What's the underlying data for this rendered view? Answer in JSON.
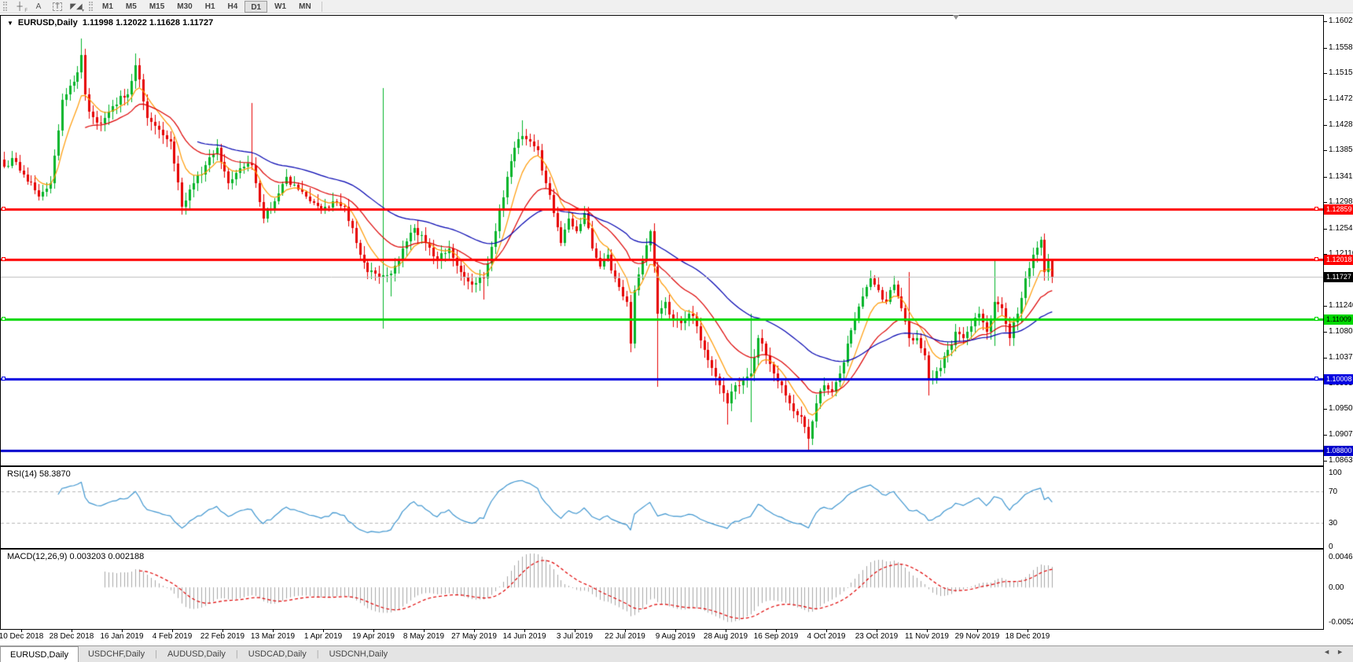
{
  "toolbar": {
    "tools": [
      {
        "name": "crosshair",
        "glyph": "┼",
        "sub": "F"
      },
      {
        "name": "text",
        "glyph": "A",
        "sub": ""
      },
      {
        "name": "text-label",
        "glyph": "T",
        "sub": ""
      },
      {
        "name": "objects",
        "glyph": "◤◢",
        "sub": "▾"
      }
    ],
    "timeframes": [
      "M1",
      "M5",
      "M15",
      "M30",
      "H1",
      "H4",
      "D1",
      "W1",
      "MN"
    ],
    "active_timeframe": "D1"
  },
  "chart": {
    "title_symbol": "EURUSD,Daily",
    "ohlc": {
      "open": "1.11998",
      "high": "1.12022",
      "low": "1.11628",
      "close": "1.11727"
    }
  },
  "rsi": {
    "label": "RSI(14) 58.3870",
    "period": 14,
    "current": 58.387,
    "levels": [
      100,
      70,
      30,
      0
    ],
    "line_color": "#3f96d0"
  },
  "macd": {
    "label": "MACD(12,26,9) 0.003203 0.002188",
    "fast": 12,
    "slow": 26,
    "signal_period": 9,
    "current_main": 0.003203,
    "current_signal": 0.002188,
    "axis_labels": [
      "0.00463",
      "0.00",
      "-0.00529"
    ],
    "axis_values": [
      0.00463,
      0,
      -0.00529
    ]
  },
  "tabs": {
    "items": [
      "EURUSD,Daily",
      "USDCHF,Daily",
      "AUDUSD,Daily",
      "USDCAD,Daily",
      "USDCNH,Daily"
    ],
    "active": "EURUSD,Daily"
  },
  "scrollbar": {
    "left_arrow": "◄",
    "right_arrow": "►"
  },
  "chart_data": {
    "type": "candlestick",
    "symbol": "EURUSD",
    "timeframe": "Daily",
    "bars": 272,
    "price_axis_ticks": [
      "1.16020",
      "1.15580",
      "1.15150",
      "1.14720",
      "1.14280",
      "1.13850",
      "1.13410",
      "1.12980",
      "1.12540",
      "1.12110",
      "1.11670",
      "1.11240",
      "1.10800",
      "1.10370",
      "1.09930",
      "1.09500",
      "1.09070",
      "1.08630"
    ],
    "date_ticks": [
      "10 Dec 2018",
      "28 Dec 2018",
      "16 Jan 2019",
      "4 Feb 2019",
      "22 Feb 2019",
      "13 Mar 2019",
      "1 Apr 2019",
      "19 Apr 2019",
      "8 May 2019",
      "27 May 2019",
      "14 Jun 2019",
      "3 Jul 2019",
      "22 Jul 2019",
      "9 Aug 2019",
      "28 Aug 2019",
      "16 Sep 2019",
      "4 Oct 2019",
      "23 Oct 2019",
      "11 Nov 2019",
      "29 Nov 2019",
      "18 Dec 2019"
    ],
    "y_axis_range": [
      1.0863,
      1.1602
    ],
    "hlines": [
      {
        "price": 1.12859,
        "label": "1.12859",
        "color": "#ff0000",
        "text_color": "#ffffff",
        "width": 3,
        "handles": true
      },
      {
        "price": 1.12018,
        "label": "1.12018",
        "color": "#ff0000",
        "text_color": "#ffffff",
        "width": 3,
        "handles": true
      },
      {
        "price": 1.11009,
        "label": "1.11009",
        "color": "#00d800",
        "text_color": "#000000",
        "width": 3,
        "handles": true
      },
      {
        "price": 1.10008,
        "label": "1.10008",
        "color": "#0000e0",
        "text_color": "#ffffff",
        "width": 3,
        "handles": true
      },
      {
        "price": 1.088,
        "label": "1.08800",
        "color": "#0000cc",
        "text_color": "#ffffff",
        "width": 3,
        "handles": false
      }
    ],
    "bid_line": {
      "price": 1.11727,
      "label": "1.11727",
      "line_color": "#c0c0c0",
      "badge_color": "#000000",
      "text_color": "#ffffff"
    },
    "moving_averages": [
      {
        "name": "fast-ma",
        "period": 8,
        "color": "#ff9900"
      },
      {
        "name": "mid-ma",
        "period": 21,
        "color": "#dd0000"
      },
      {
        "name": "slow-ma",
        "period": 50,
        "color": "#0000b0"
      }
    ],
    "candle_up_color": "#00b428",
    "candle_down_color": "#e60000",
    "macd_hist_color": "#a8a8a8",
    "macd_signal_color": "#e00000",
    "close_anchors": [
      [
        0,
        1.1358
      ],
      [
        2,
        1.1372
      ],
      [
        5,
        1.1345
      ],
      [
        9,
        1.1308
      ],
      [
        12,
        1.133
      ],
      [
        15,
        1.147
      ],
      [
        18,
        1.15
      ],
      [
        20,
        1.1545
      ],
      [
        21,
        1.148
      ],
      [
        22,
        1.145
      ],
      [
        25,
        1.143
      ],
      [
        28,
        1.146
      ],
      [
        32,
        1.148
      ],
      [
        34,
        1.1528
      ],
      [
        37,
        1.144
      ],
      [
        40,
        1.142
      ],
      [
        43,
        1.14
      ],
      [
        46,
        1.129
      ],
      [
        49,
        1.133
      ],
      [
        52,
        1.136
      ],
      [
        55,
        1.139
      ],
      [
        58,
        1.133
      ],
      [
        61,
        1.1355
      ],
      [
        64,
        1.136
      ],
      [
        67,
        1.127
      ],
      [
        70,
        1.13
      ],
      [
        73,
        1.134
      ],
      [
        76,
        1.132
      ],
      [
        79,
        1.13
      ],
      [
        82,
        1.1285
      ],
      [
        85,
        1.13
      ],
      [
        88,
        1.129
      ],
      [
        91,
        1.123
      ],
      [
        94,
        1.118
      ],
      [
        98,
        1.1175
      ],
      [
        100,
        1.1178
      ],
      [
        103,
        1.122
      ],
      [
        106,
        1.1255
      ],
      [
        109,
        1.123
      ],
      [
        112,
        1.12
      ],
      [
        115,
        1.122
      ],
      [
        118,
        1.118
      ],
      [
        121,
        1.116
      ],
      [
        124,
        1.117
      ],
      [
        127,
        1.125
      ],
      [
        130,
        1.134
      ],
      [
        132,
        1.139
      ],
      [
        134,
        1.141
      ],
      [
        136,
        1.14
      ],
      [
        138,
        1.1385
      ],
      [
        140,
        1.133
      ],
      [
        142,
        1.128
      ],
      [
        144,
        1.123
      ],
      [
        146,
        1.127
      ],
      [
        148,
        1.125
      ],
      [
        150,
        1.128
      ],
      [
        152,
        1.122
      ],
      [
        154,
        1.119
      ],
      [
        156,
        1.121
      ],
      [
        158,
        1.117
      ],
      [
        160,
        1.114
      ],
      [
        161,
        1.113
      ],
      [
        162,
        1.106
      ],
      [
        163,
        1.115
      ],
      [
        165,
        1.12
      ],
      [
        167,
        1.125
      ],
      [
        168,
        1.119
      ],
      [
        169,
        1.111
      ],
      [
        171,
        1.113
      ],
      [
        173,
        1.11
      ],
      [
        175,
        1.1095
      ],
      [
        177,
        1.111
      ],
      [
        179,
        1.109
      ],
      [
        181,
        1.105
      ],
      [
        183,
        1.102
      ],
      [
        185,
        1.099
      ],
      [
        187,
        1.096
      ],
      [
        189,
        1.099
      ],
      [
        191,
        1.1
      ],
      [
        193,
        1.101
      ],
      [
        195,
        1.107
      ],
      [
        197,
        1.104
      ],
      [
        199,
        1.101
      ],
      [
        201,
        1.099
      ],
      [
        203,
        1.096
      ],
      [
        205,
        1.094
      ],
      [
        207,
        1.092
      ],
      [
        208,
        1.09
      ],
      [
        210,
        1.096
      ],
      [
        212,
        1.099
      ],
      [
        214,
        1.098
      ],
      [
        216,
        1.101
      ],
      [
        218,
        1.106
      ],
      [
        220,
        1.11
      ],
      [
        222,
        1.114
      ],
      [
        224,
        1.117
      ],
      [
        226,
        1.115
      ],
      [
        228,
        1.113
      ],
      [
        230,
        1.116
      ],
      [
        232,
        1.112
      ],
      [
        234,
        1.107
      ],
      [
        236,
        1.107
      ],
      [
        238,
        1.104
      ],
      [
        239,
        1.1
      ],
      [
        242,
        1.102
      ],
      [
        244,
        1.105
      ],
      [
        246,
        1.108
      ],
      [
        248,
        1.107
      ],
      [
        250,
        1.109
      ],
      [
        252,
        1.111
      ],
      [
        254,
        1.108
      ],
      [
        256,
        1.113
      ],
      [
        258,
        1.112
      ],
      [
        260,
        1.107
      ],
      [
        262,
        1.111
      ],
      [
        264,
        1.117
      ],
      [
        266,
        1.121
      ],
      [
        268,
        1.1235
      ],
      [
        269,
        1.118
      ],
      [
        270,
        1.12
      ],
      [
        271,
        1.11727
      ]
    ],
    "special_bars": {
      "20": [
        1.1573,
        null
      ],
      "34": [
        1.1548,
        null
      ],
      "64": [
        1.1465,
        null
      ],
      "98": [
        1.149,
        1.1085
      ],
      "100": [
        null,
        1.114
      ],
      "124": [
        null,
        1.1135
      ],
      "134": [
        1.1436,
        null
      ],
      "162": [
        null,
        1.1046
      ],
      "167": [
        1.1252,
        null
      ],
      "169": [
        null,
        1.0988
      ],
      "187": [
        null,
        1.0924
      ],
      "193": [
        1.111,
        1.0928
      ],
      "208": [
        null,
        1.0878
      ],
      "234": [
        1.118,
        1.1055
      ],
      "239": [
        null,
        1.0973
      ],
      "256": [
        1.1202,
        1.1056
      ],
      "268": [
        1.124,
        null
      ],
      "271": [
        1.12022,
        1.11628
      ]
    },
    "last_bar_ohlc": [
      1.11998,
      1.12022,
      1.11628,
      1.11727
    ]
  }
}
